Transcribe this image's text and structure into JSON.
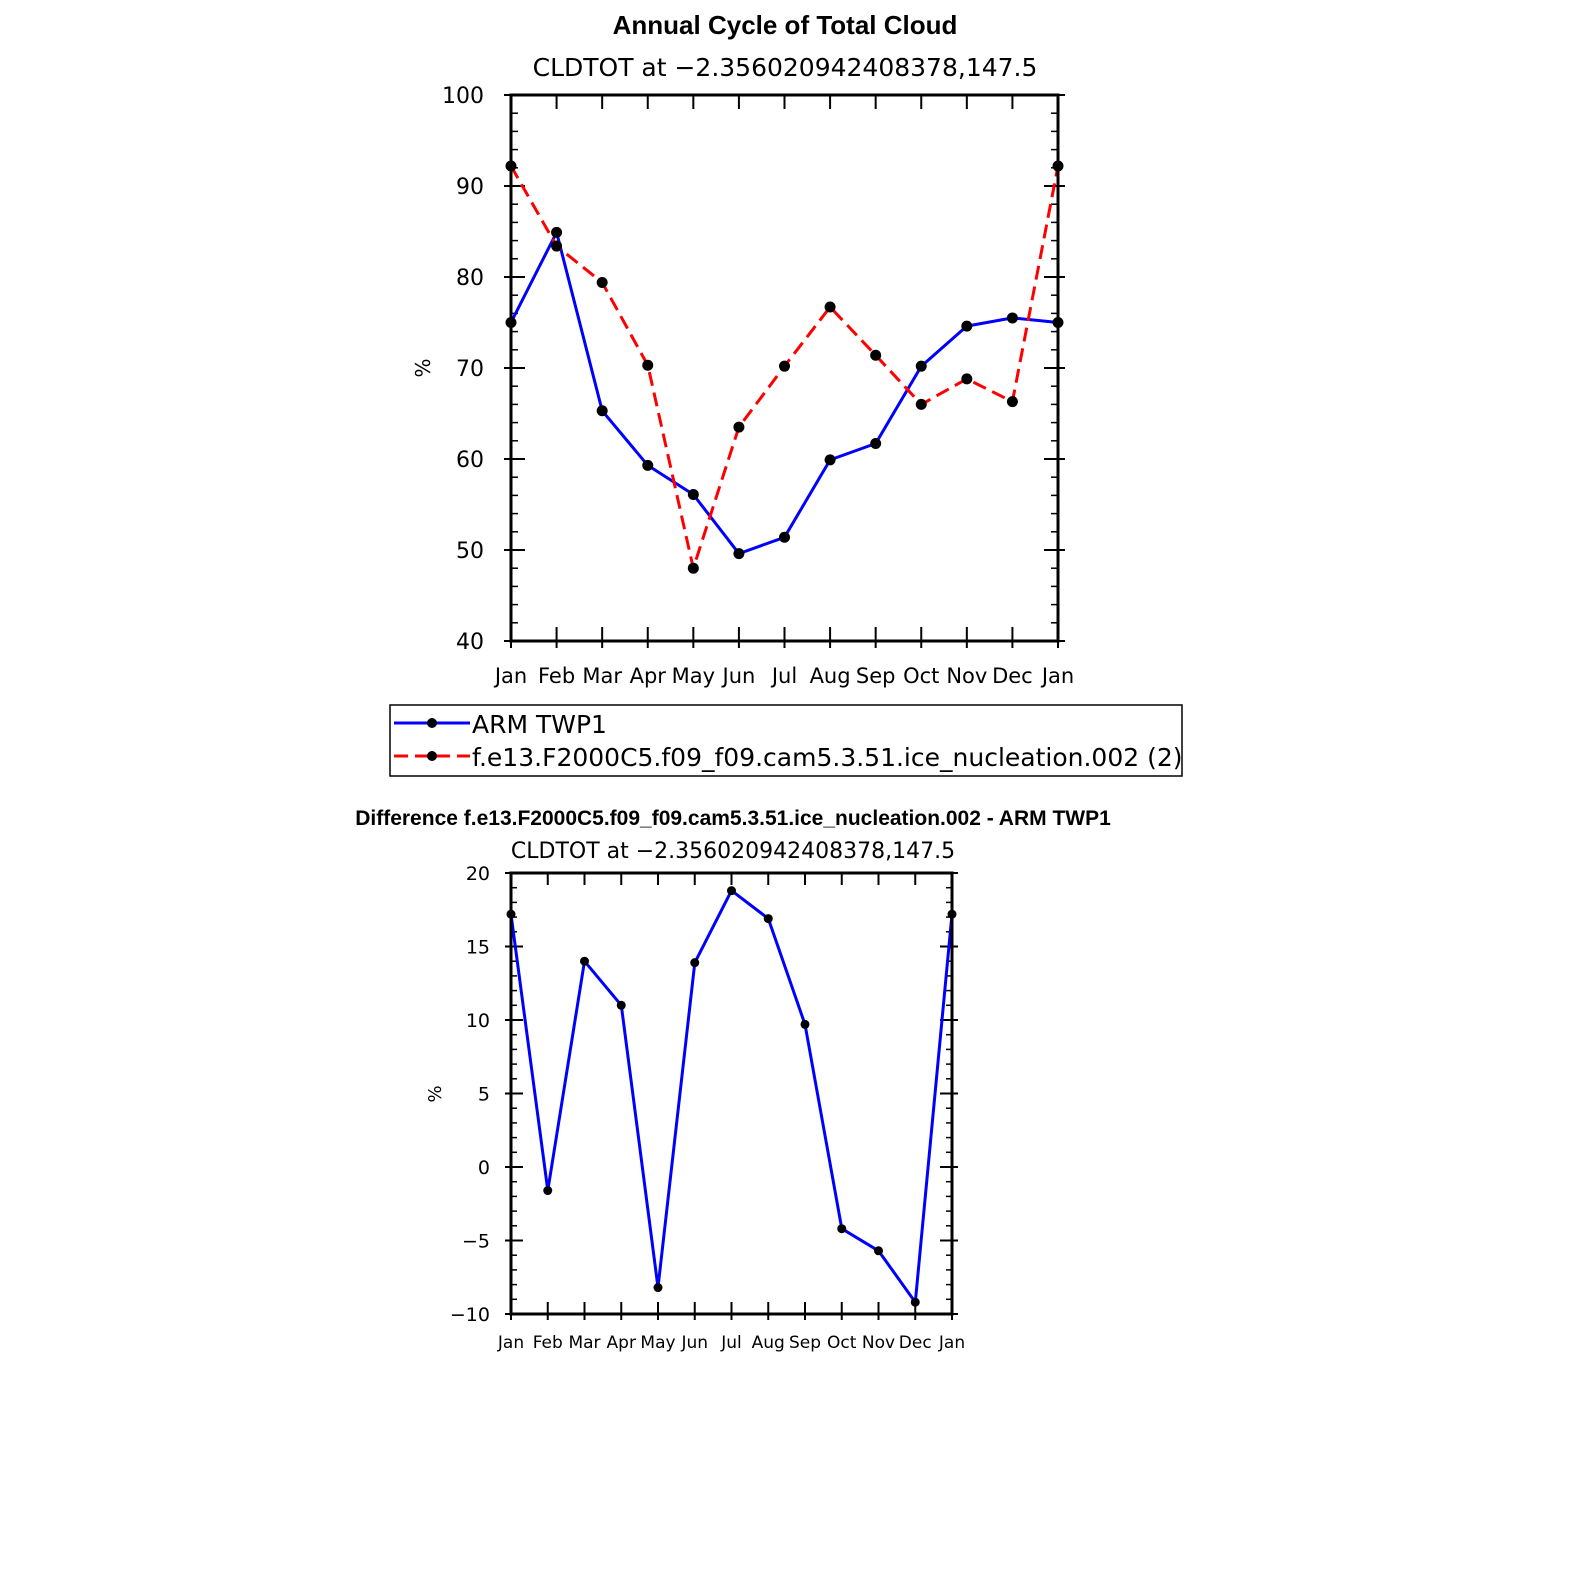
{
  "chart_data": [
    {
      "type": "line",
      "title": "Annual Cycle of Total Cloud",
      "subtitle": "CLDTOT at −2.356020942408378,147.5",
      "ylabel": "%",
      "xlabel": "",
      "ylim": [
        40,
        100
      ],
      "yticks": [
        "40",
        "50",
        "60",
        "70",
        "80",
        "90",
        "100"
      ],
      "categories": [
        "Jan",
        "Feb",
        "Mar",
        "Apr",
        "May",
        "Jun",
        "Jul",
        "Aug",
        "Sep",
        "Oct",
        "Nov",
        "Dec",
        "Jan"
      ],
      "grid": false,
      "legend_position": "below",
      "series": [
        {
          "name": "ARM TWP1",
          "color": "#0000ff",
          "dash": "solid",
          "values": [
            75.0,
            84.9,
            65.3,
            59.3,
            56.1,
            49.6,
            51.4,
            59.9,
            61.7,
            70.2,
            74.6,
            75.5,
            75.0
          ]
        },
        {
          "name": "f.e13.F2000C5.f09_f09.cam5.3.51.ice_nucleation.002 (2)",
          "color": "#ff0000",
          "dash": "dashed",
          "values": [
            92.2,
            83.4,
            79.4,
            70.3,
            48.0,
            63.5,
            70.2,
            76.7,
            71.4,
            66.0,
            68.8,
            66.3,
            92.2
          ]
        }
      ]
    },
    {
      "type": "line",
      "title": "Difference f.e13.F2000C5.f09_f09.cam5.3.51.ice_nucleation.002 - ARM TWP1",
      "subtitle": "CLDTOT at −2.356020942408378,147.5",
      "ylabel": "%",
      "xlabel": "",
      "ylim": [
        -10,
        20
      ],
      "yticks": [
        "−10",
        "−5",
        "0",
        "5",
        "10",
        "15",
        "20"
      ],
      "categories": [
        "Jan",
        "Feb",
        "Mar",
        "Apr",
        "May",
        "Jun",
        "Jul",
        "Aug",
        "Sep",
        "Oct",
        "Nov",
        "Dec",
        "Jan"
      ],
      "grid": false,
      "series": [
        {
          "name": "",
          "color": "#0000ff",
          "dash": "solid",
          "values": [
            17.2,
            -1.6,
            14.0,
            11.0,
            -8.2,
            13.9,
            18.8,
            16.9,
            9.7,
            -4.2,
            -5.7,
            -9.2,
            17.2
          ]
        }
      ]
    }
  ]
}
